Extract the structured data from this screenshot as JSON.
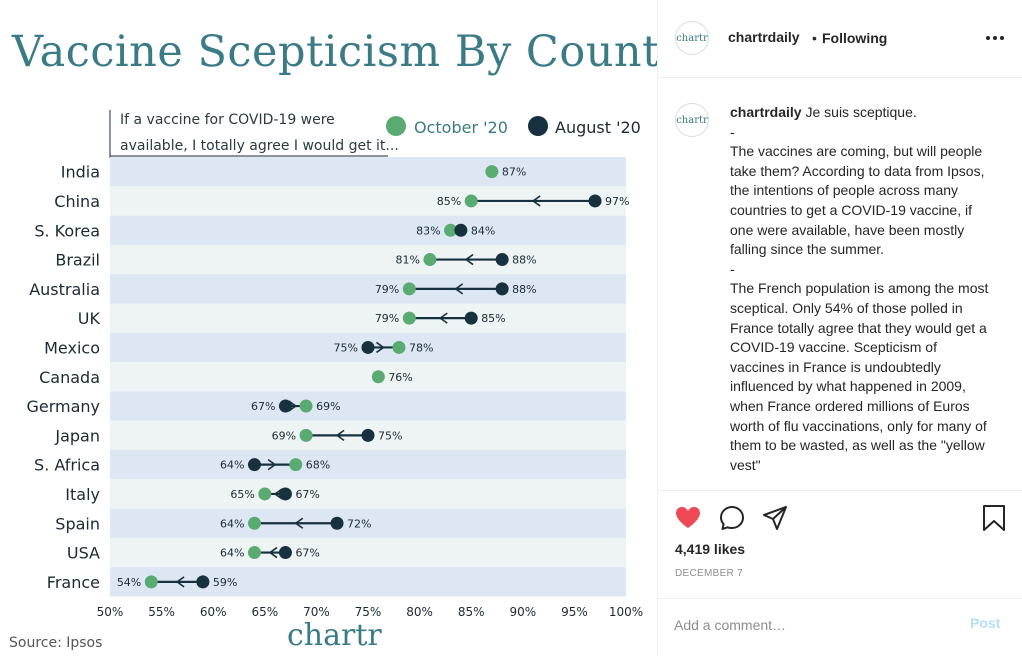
{
  "chart_data": {
    "type": "dumbbell",
    "title": "Vaccine Scepticism By Country",
    "subtitle_lines": [
      "If a vaccine for COVID-19 were",
      "available, I totally agree I would get it..."
    ],
    "legend": [
      {
        "name": "October '20",
        "color": "#5aab72"
      },
      {
        "name": "August '20",
        "color": "#17313f"
      }
    ],
    "xlim": [
      50,
      100
    ],
    "x_ticks": [
      50,
      55,
      60,
      65,
      70,
      75,
      80,
      85,
      90,
      95,
      100
    ],
    "x_tick_suffix": "%",
    "rows": [
      {
        "country": "India",
        "oct": 87,
        "aug": null
      },
      {
        "country": "China",
        "oct": 85,
        "aug": 97
      },
      {
        "country": "S. Korea",
        "oct": 83,
        "aug": 84
      },
      {
        "country": "Brazil",
        "oct": 81,
        "aug": 88
      },
      {
        "country": "Australia",
        "oct": 79,
        "aug": 88
      },
      {
        "country": "UK",
        "oct": 79,
        "aug": 85
      },
      {
        "country": "Mexico",
        "oct": 78,
        "aug": 75
      },
      {
        "country": "Canada",
        "oct": 76,
        "aug": null
      },
      {
        "country": "Germany",
        "oct": 69,
        "aug": 67
      },
      {
        "country": "Japan",
        "oct": 69,
        "aug": 75
      },
      {
        "country": "S. Africa",
        "oct": 68,
        "aug": 64
      },
      {
        "country": "Italy",
        "oct": 65,
        "aug": 67
      },
      {
        "country": "Spain",
        "oct": 64,
        "aug": 72
      },
      {
        "country": "USA",
        "oct": 64,
        "aug": 67
      },
      {
        "country": "France",
        "oct": 54,
        "aug": 59
      }
    ],
    "source": "Source: Ipsos",
    "brand": "chartr"
  },
  "post": {
    "username": "chartrdaily",
    "avatar_text": "chartr",
    "separator": "•",
    "follow_status": "Following",
    "caption_first": "Je suis sceptique.",
    "caption_lines": [
      "-",
      "The vaccines are coming, but will people take them? According to data from Ipsos, the intentions of people across many countries to get a COVID-19 vaccine, if one were available, have been mostly falling since the summer.",
      "-",
      "The French population is among the most sceptical. Only 54% of those polled in France totally agree that they would get a COVID-19 vaccine. Scepticism of vaccines in France is undoubtedly influenced by what happened in 2009, when France ordered millions of Euros worth of flu vaccinations, only for many of them to be wasted, as well as the \"yellow vest\""
    ],
    "likes": "4,419 likes",
    "date": "DECEMBER 7",
    "comment_placeholder": "Add a comment…",
    "post_label": "Post",
    "like_color": "#ed4956"
  }
}
